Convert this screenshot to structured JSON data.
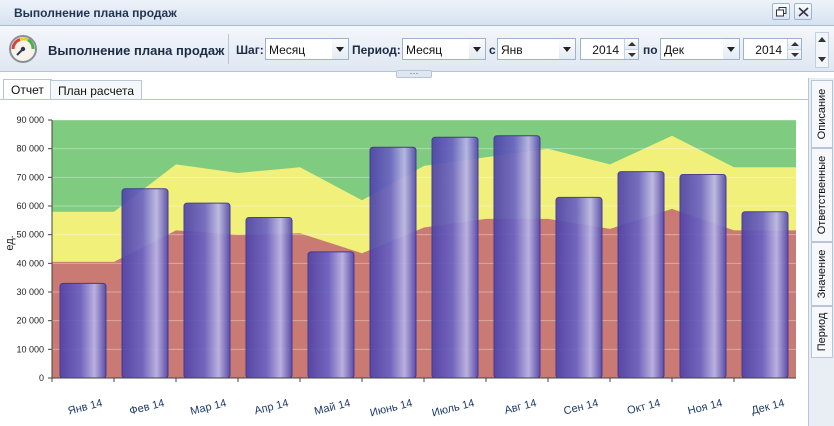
{
  "window": {
    "title": "Выполнение плана продаж"
  },
  "toolbar": {
    "app_title": "Выполнение плана продаж",
    "step_label": "Шаг:",
    "step_value": "Месяц",
    "period_label": "Период:",
    "period_value": "Месяц",
    "from_label": "с",
    "from_month": "Янв",
    "from_year": "2014",
    "to_label": "по",
    "to_month": "Дек",
    "to_year": "2014"
  },
  "tabs": [
    {
      "label": "Отчет",
      "active": true
    },
    {
      "label": "План расчета",
      "active": false
    }
  ],
  "side_tabs": [
    {
      "label": "Описание"
    },
    {
      "label": "Ответственные"
    },
    {
      "label": "Значение"
    },
    {
      "label": "Период"
    }
  ],
  "colors": {
    "band_green": "#7fcb7f",
    "band_yellow": "#f0f07a",
    "band_red": "#c97a72",
    "bar": "#5a4fb0"
  },
  "chart_data": {
    "type": "bar",
    "ylabel": "ед.",
    "ylim": [
      0,
      90000
    ],
    "yticks": [
      "0",
      "10 000",
      "20 000",
      "30 000",
      "40 000",
      "50 000",
      "60 000",
      "70 000",
      "80 000",
      "90 000"
    ],
    "categories": [
      "Янв 14",
      "Фев 14",
      "Мар 14",
      "Апр 14",
      "Май 14",
      "Июнь 14",
      "Июль 14",
      "Авг 14",
      "Сен 14",
      "Окт 14",
      "Ноя 14",
      "Дек 14"
    ],
    "values": [
      33000,
      66000,
      61000,
      56000,
      44000,
      80500,
      84000,
      84500,
      63000,
      72000,
      71000,
      58000
    ],
    "bands": [
      {
        "name": "red",
        "values": [
          40500,
          40500,
          51500,
          50000,
          50500,
          43500,
          52500,
          55500,
          55500,
          52000,
          59000,
          51500,
          51500
        ]
      },
      {
        "name": "yellow",
        "values": [
          58000,
          58000,
          74500,
          71500,
          73500,
          62000,
          74000,
          77000,
          80000,
          74500,
          84500,
          73500,
          73500
        ]
      }
    ]
  }
}
